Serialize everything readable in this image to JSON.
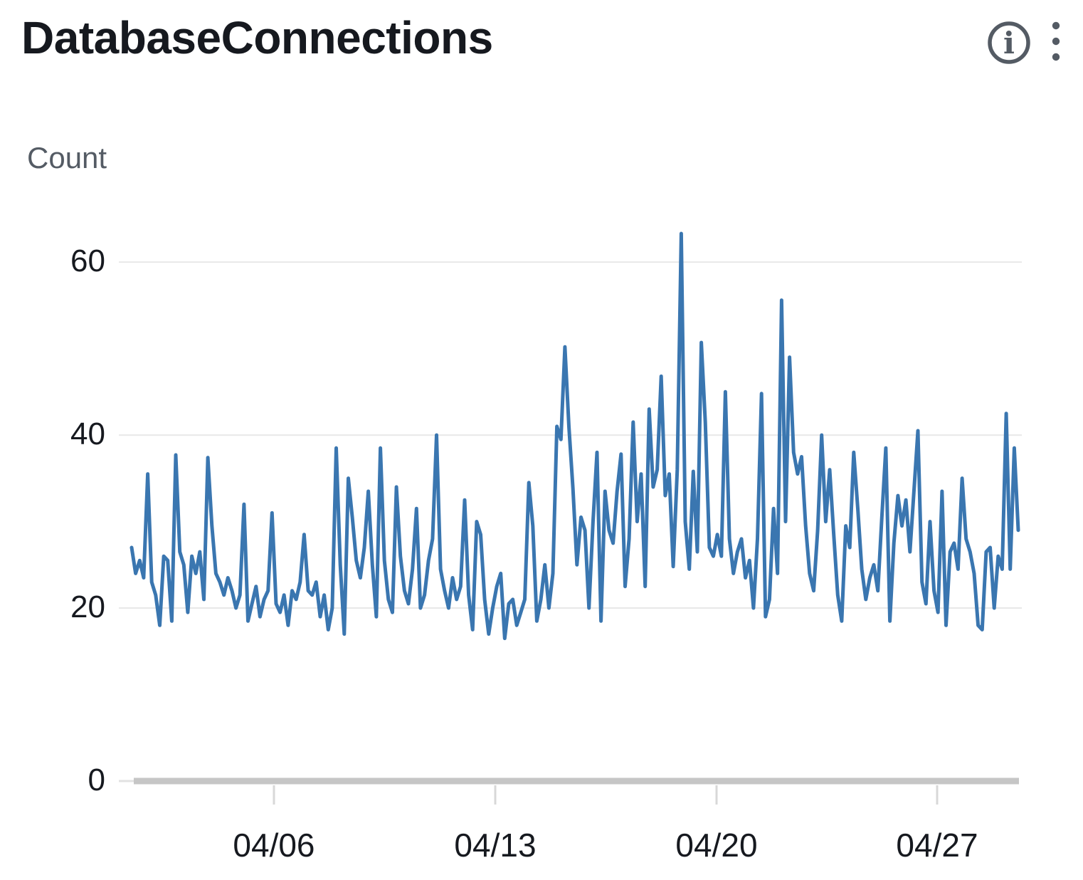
{
  "widget": {
    "title": "DatabaseConnections",
    "ylabel": "Count"
  },
  "toolbar": {
    "info_icon": "circle-info",
    "menu_icon": "vertical-ellipsis-kebab"
  },
  "colors": {
    "line": "#3a76b0",
    "title_text": "#16191f",
    "axis_text": "#16191f",
    "ylabel_text": "#545b64",
    "grid": "#e8e8e8",
    "baseline": "#c6c6c6",
    "tick": "#d8d8d8",
    "icon": "#545b64"
  },
  "chart_data": {
    "type": "line",
    "title": "DatabaseConnections",
    "xlabel": "",
    "ylabel": "Count",
    "ylim": [
      0,
      65
    ],
    "grid": true,
    "legend": false,
    "y_ticks": [
      0,
      20,
      40,
      60
    ],
    "x_ticks": [
      {
        "label": "04/06",
        "pos": 0.1605
      },
      {
        "label": "04/13",
        "pos": 0.4101
      },
      {
        "label": "04/20",
        "pos": 0.6597
      },
      {
        "label": "04/27",
        "pos": 0.9085
      }
    ],
    "series": [
      {
        "name": "DatabaseConnections",
        "values": [
          27,
          24,
          25.5,
          23.5,
          35.5,
          23,
          21.5,
          18,
          26,
          25.5,
          18.5,
          37.7,
          26.5,
          25,
          19.5,
          26,
          24,
          26.5,
          21,
          37.4,
          29.5,
          24,
          23,
          21.5,
          23.5,
          22,
          20,
          21.5,
          32,
          18.5,
          20.5,
          22.5,
          19,
          21,
          22,
          31,
          20.5,
          19.5,
          21.5,
          18,
          22,
          21,
          23,
          28.5,
          22,
          21.5,
          23,
          19,
          21.5,
          17.5,
          20,
          38.5,
          25,
          17,
          35,
          30.5,
          25.5,
          23.5,
          27,
          33.5,
          25,
          19,
          38.5,
          25.5,
          21,
          19.5,
          34,
          26,
          22,
          20.5,
          24.5,
          31.5,
          20,
          21.5,
          25.5,
          28,
          40,
          24.5,
          22,
          20,
          23.5,
          21,
          22.5,
          32.5,
          21.5,
          17.5,
          30,
          28.5,
          21,
          17,
          20,
          22.5,
          24,
          16.5,
          20.5,
          21,
          18,
          19.5,
          21,
          34.5,
          29.5,
          18.5,
          21,
          25,
          20,
          24,
          41,
          39.5,
          50.2,
          41,
          33.8,
          25,
          30.5,
          29,
          20,
          30,
          38,
          18.5,
          33.5,
          29,
          27.5,
          33.5,
          37.8,
          22.5,
          28,
          41.5,
          30,
          35.5,
          22.5,
          43,
          34,
          36,
          46.8,
          33,
          35.5,
          24.8,
          36,
          63.3,
          30,
          24.5,
          35.8,
          26.5,
          50.7,
          41.5,
          27,
          26,
          28.5,
          26,
          45,
          28,
          24,
          26.5,
          28,
          23.5,
          25.5,
          20,
          28,
          44.8,
          19,
          21,
          31.5,
          24,
          55.6,
          30,
          49,
          38,
          35.5,
          37.5,
          29.5,
          24,
          22,
          29,
          40,
          30,
          36,
          28.5,
          21.5,
          18.5,
          29.5,
          27,
          38,
          31.5,
          24.5,
          21,
          23.5,
          25,
          22,
          30.5,
          38.5,
          18.5,
          27.5,
          33,
          29.5,
          32.5,
          26.5,
          33.5,
          40.5,
          23,
          20.5,
          30,
          22,
          19.5,
          33.5,
          18,
          26.5,
          27.5,
          24.5,
          35,
          28,
          26.5,
          24,
          18,
          17.5,
          26.5,
          27,
          20,
          26,
          24.5,
          42.5,
          24.5,
          38.5,
          29
        ]
      }
    ]
  }
}
